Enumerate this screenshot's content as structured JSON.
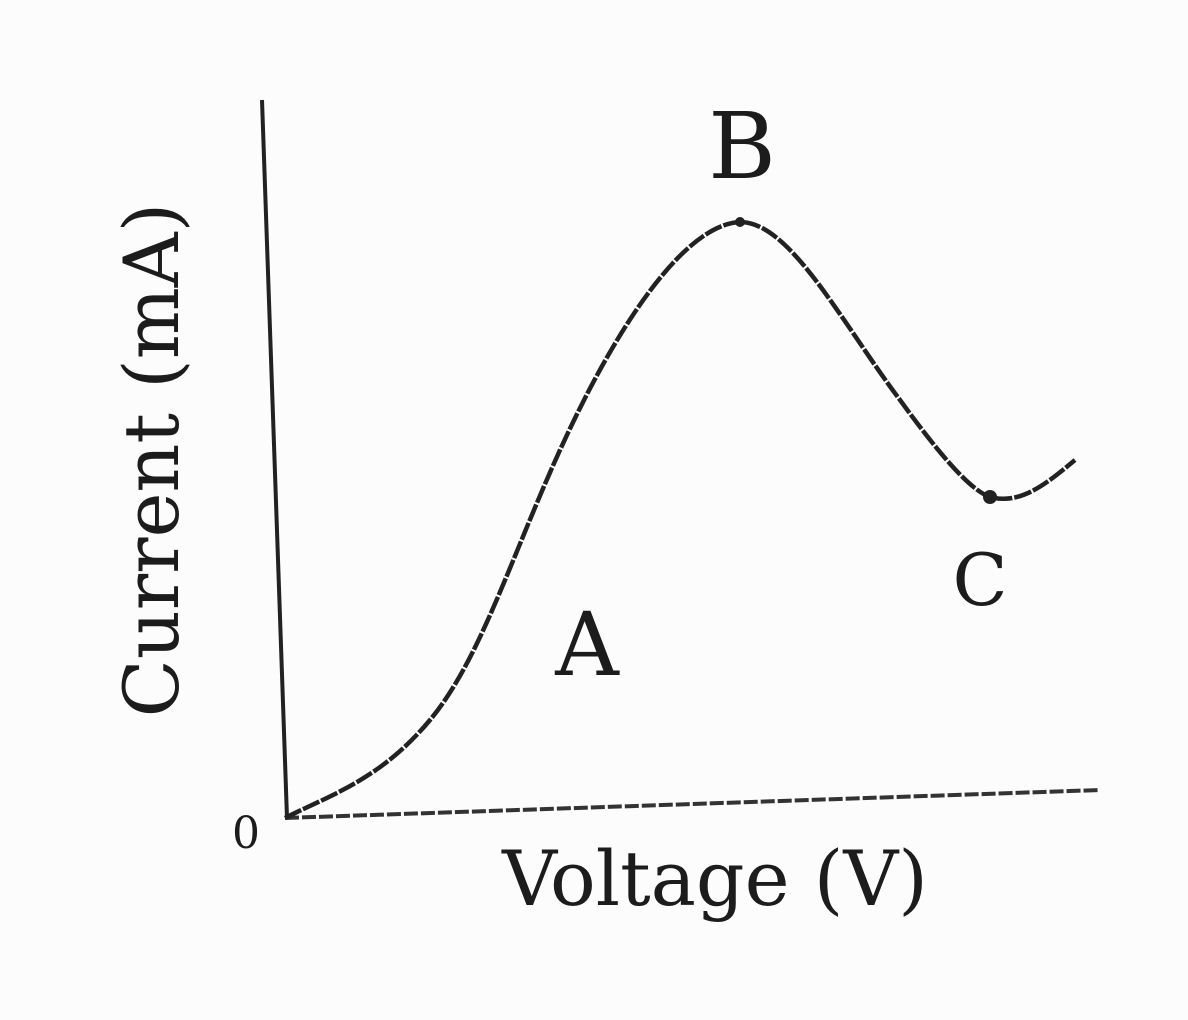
{
  "axes": {
    "x_label": "Voltage (V)",
    "y_label": "Current (mA)",
    "origin_label": "0"
  },
  "points": {
    "a": "A",
    "b": "B",
    "c": "C"
  },
  "colors": {
    "ink": "#1c1c1c",
    "background": "#fcfcfc"
  }
}
